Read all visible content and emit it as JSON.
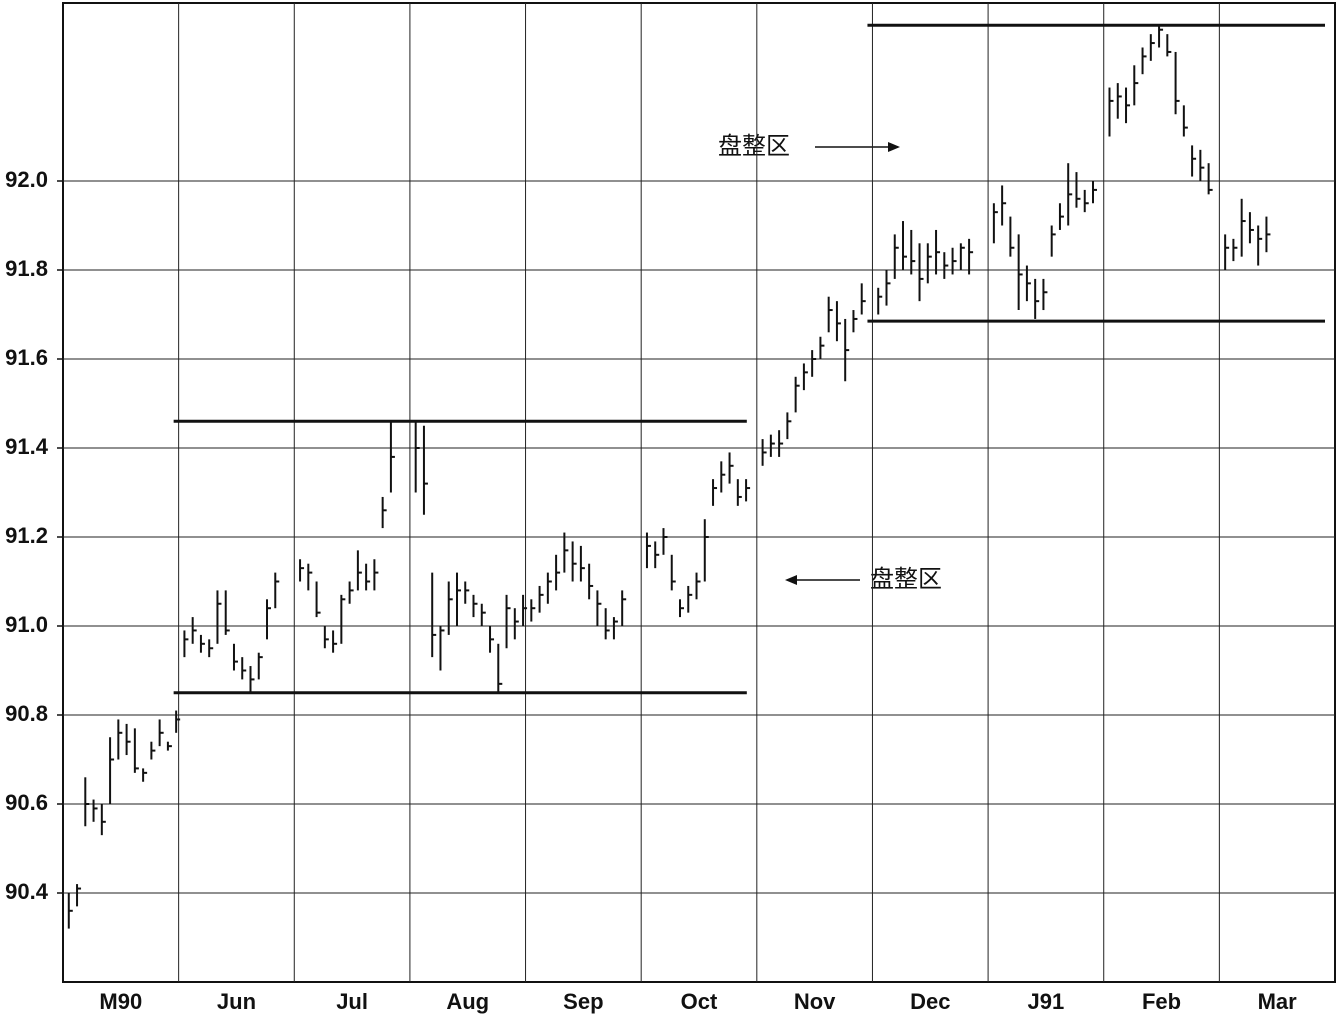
{
  "chart_data": {
    "type": "ohlc",
    "categories": [
      "M90",
      "Jun",
      "Jul",
      "Aug",
      "Sep",
      "Oct",
      "Nov",
      "Dec",
      "J91",
      "Feb",
      "Mar"
    ],
    "bars": [
      [
        [
          90.4,
          90.32,
          90.36
        ],
        [
          90.42,
          90.37,
          90.41
        ],
        [
          90.66,
          90.55,
          90.6
        ],
        [
          90.61,
          90.56,
          90.59
        ],
        [
          90.6,
          90.53,
          90.56
        ],
        [
          90.75,
          90.6,
          90.7
        ],
        [
          90.79,
          90.7,
          90.76
        ],
        [
          90.78,
          90.71,
          90.74
        ],
        [
          90.77,
          90.67,
          90.68
        ],
        [
          90.68,
          90.65,
          90.67
        ],
        [
          90.74,
          90.7,
          90.72
        ],
        [
          90.79,
          90.73,
          90.76
        ],
        [
          90.74,
          90.72,
          90.73
        ],
        [
          90.81,
          90.76,
          90.79
        ]
      ],
      [
        [
          90.99,
          90.93,
          90.97
        ],
        [
          91.02,
          90.96,
          90.99
        ],
        [
          90.98,
          90.94,
          90.96
        ],
        [
          90.97,
          90.93,
          90.95
        ],
        [
          91.08,
          90.96,
          91.05
        ],
        [
          91.08,
          90.98,
          90.99
        ],
        [
          90.96,
          90.9,
          90.92
        ],
        [
          90.93,
          90.88,
          90.9
        ],
        [
          90.91,
          90.85,
          90.88
        ],
        [
          90.94,
          90.88,
          90.93
        ],
        [
          91.06,
          90.97,
          91.04
        ],
        [
          91.12,
          91.04,
          91.1
        ]
      ],
      [
        [
          91.15,
          91.1,
          91.13
        ],
        [
          91.14,
          91.08,
          91.12
        ],
        [
          91.1,
          91.02,
          91.03
        ],
        [
          91.0,
          90.95,
          90.97
        ],
        [
          90.99,
          90.94,
          90.96
        ],
        [
          91.07,
          90.96,
          91.06
        ],
        [
          91.1,
          91.05,
          91.08
        ],
        [
          91.17,
          91.08,
          91.12
        ],
        [
          91.14,
          91.08,
          91.1
        ],
        [
          91.15,
          91.08,
          91.12
        ],
        [
          91.29,
          91.22,
          91.26
        ],
        [
          91.46,
          91.3,
          91.38
        ]
      ],
      [
        [
          91.46,
          91.3,
          91.4
        ],
        [
          91.45,
          91.25,
          91.32
        ],
        [
          91.12,
          90.93,
          90.98
        ],
        [
          91.0,
          90.9,
          90.99
        ],
        [
          91.1,
          90.98,
          91.06
        ],
        [
          91.12,
          91.0,
          91.08
        ],
        [
          91.1,
          91.05,
          91.08
        ],
        [
          91.07,
          91.02,
          91.05
        ],
        [
          91.05,
          91.0,
          91.03
        ],
        [
          91.0,
          90.94,
          90.97
        ],
        [
          90.96,
          90.85,
          90.87
        ],
        [
          91.07,
          90.95,
          91.04
        ],
        [
          91.04,
          90.97,
          91.01
        ],
        [
          91.07,
          91.0,
          91.04
        ]
      ],
      [
        [
          91.06,
          91.01,
          91.04
        ],
        [
          91.09,
          91.03,
          91.07
        ],
        [
          91.12,
          91.05,
          91.1
        ],
        [
          91.16,
          91.08,
          91.12
        ],
        [
          91.21,
          91.12,
          91.17
        ],
        [
          91.19,
          91.1,
          91.14
        ],
        [
          91.18,
          91.1,
          91.13
        ],
        [
          91.14,
          91.06,
          91.09
        ],
        [
          91.08,
          91.0,
          91.05
        ],
        [
          91.04,
          90.97,
          90.99
        ],
        [
          91.02,
          90.97,
          91.01
        ],
        [
          91.08,
          91.0,
          91.06
        ]
      ],
      [
        [
          91.21,
          91.13,
          91.18
        ],
        [
          91.19,
          91.13,
          91.16
        ],
        [
          91.22,
          91.16,
          91.2
        ],
        [
          91.16,
          91.08,
          91.1
        ],
        [
          91.06,
          91.02,
          91.04
        ],
        [
          91.09,
          91.03,
          91.07
        ],
        [
          91.12,
          91.06,
          91.1
        ],
        [
          91.24,
          91.1,
          91.2
        ],
        [
          91.33,
          91.27,
          91.31
        ],
        [
          91.37,
          91.3,
          91.34
        ],
        [
          91.39,
          91.32,
          91.36
        ],
        [
          91.33,
          91.27,
          91.29
        ],
        [
          91.33,
          91.28,
          91.31
        ]
      ],
      [
        [
          91.42,
          91.36,
          91.39
        ],
        [
          91.43,
          91.38,
          91.41
        ],
        [
          91.44,
          91.38,
          91.41
        ],
        [
          91.48,
          91.42,
          91.46
        ],
        [
          91.56,
          91.48,
          91.54
        ],
        [
          91.59,
          91.53,
          91.57
        ],
        [
          91.62,
          91.56,
          91.6
        ],
        [
          91.65,
          91.6,
          91.63
        ],
        [
          91.74,
          91.66,
          91.71
        ],
        [
          91.73,
          91.64,
          91.68
        ],
        [
          91.69,
          91.55,
          91.62
        ],
        [
          91.71,
          91.66,
          91.69
        ],
        [
          91.77,
          91.7,
          91.73
        ]
      ],
      [
        [
          91.76,
          91.7,
          91.74
        ],
        [
          91.8,
          91.72,
          91.77
        ],
        [
          91.88,
          91.78,
          91.85
        ],
        [
          91.91,
          91.8,
          91.83
        ],
        [
          91.89,
          91.79,
          91.82
        ],
        [
          91.86,
          91.73,
          91.78
        ],
        [
          91.86,
          91.77,
          91.83
        ],
        [
          91.89,
          91.79,
          91.84
        ],
        [
          91.84,
          91.78,
          91.81
        ],
        [
          91.85,
          91.79,
          91.82
        ],
        [
          91.86,
          91.8,
          91.85
        ],
        [
          91.87,
          91.79,
          91.84
        ]
      ],
      [
        [
          91.95,
          91.86,
          91.93
        ],
        [
          91.99,
          91.9,
          91.95
        ],
        [
          91.92,
          91.83,
          91.85
        ],
        [
          91.88,
          91.71,
          91.79
        ],
        [
          91.81,
          91.73,
          91.77
        ],
        [
          91.78,
          91.69,
          91.73
        ],
        [
          91.78,
          91.71,
          91.75
        ],
        [
          91.9,
          91.83,
          91.88
        ],
        [
          91.95,
          91.89,
          91.92
        ],
        [
          92.04,
          91.9,
          91.97
        ],
        [
          92.02,
          91.94,
          91.96
        ],
        [
          91.98,
          91.93,
          91.95
        ],
        [
          92.0,
          91.95,
          91.98
        ]
      ],
      [
        [
          92.21,
          92.1,
          92.18
        ],
        [
          92.22,
          92.14,
          92.19
        ],
        [
          92.21,
          92.13,
          92.17
        ],
        [
          92.26,
          92.17,
          92.22
        ],
        [
          92.3,
          92.24,
          92.28
        ],
        [
          92.33,
          92.27,
          92.31
        ],
        [
          92.35,
          92.3,
          92.34
        ],
        [
          92.33,
          92.28,
          92.29
        ],
        [
          92.29,
          92.15,
          92.18
        ],
        [
          92.17,
          92.1,
          92.12
        ],
        [
          92.08,
          92.01,
          92.05
        ],
        [
          92.07,
          92.0,
          92.03
        ],
        [
          92.04,
          91.97,
          91.98
        ]
      ],
      [
        [
          91.88,
          91.8,
          91.85
        ],
        [
          91.87,
          91.82,
          91.85
        ],
        [
          91.96,
          91.83,
          91.91
        ],
        [
          91.93,
          91.86,
          91.89
        ],
        [
          91.9,
          91.81,
          91.87
        ],
        [
          91.92,
          91.84,
          91.88
        ]
      ]
    ],
    "ylim": [
      90.2,
      92.4
    ],
    "yticks": [
      {
        "value": 90.4,
        "label": "90.4"
      },
      90.6,
      90.8,
      {
        "value": 91,
        "label": "91.0"
      },
      91.2,
      91.4,
      91.6,
      91.8,
      {
        "value": 92,
        "label": "92.0"
      }
    ],
    "grid": true,
    "color": "#111111",
    "zones": [
      {
        "label": "盘整区",
        "high": 91.46,
        "low": 90.85,
        "start": 1,
        "end": 5
      },
      {
        "label": "盘整区",
        "high": 92.35,
        "low": 91.685,
        "start": 7,
        "end": 10
      }
    ]
  }
}
